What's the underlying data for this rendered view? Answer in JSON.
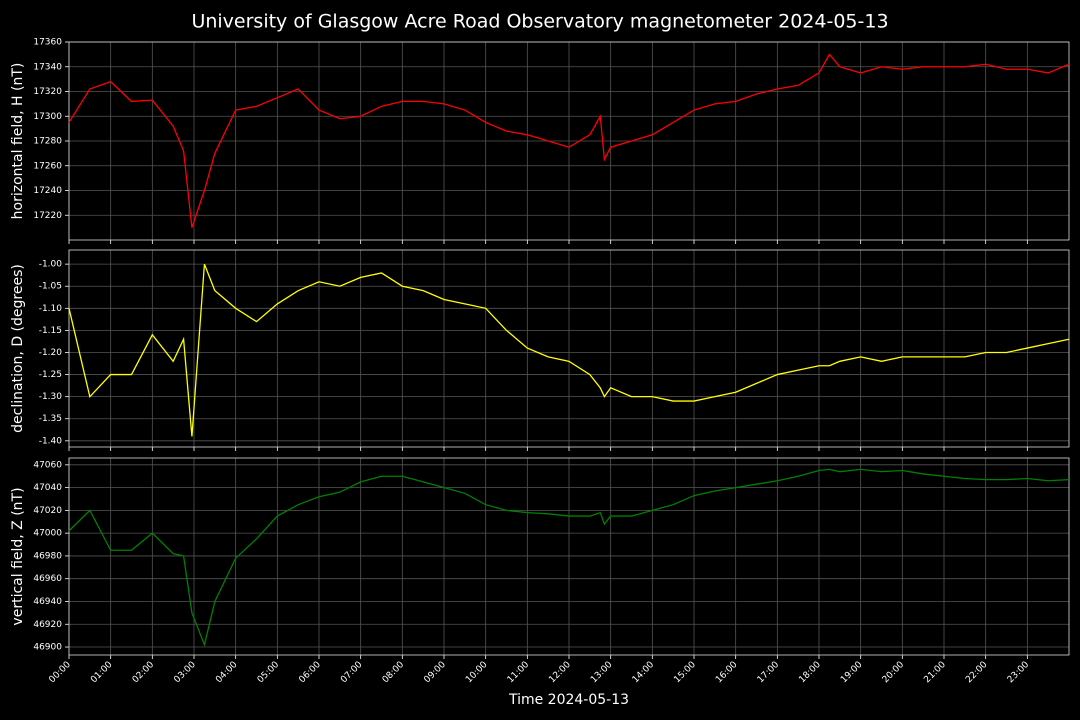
{
  "chart_data": [
    {
      "type": "line",
      "title": "University of Glasgow Acre Road Observatory magnetometer 2024-05-13",
      "ylabel": "horizontal field, H (nT)",
      "color": "#ff0000",
      "grid": true,
      "x": [
        0,
        0.5,
        1,
        1.5,
        2,
        2.5,
        2.75,
        2.95,
        3.25,
        3.5,
        4,
        4.5,
        5,
        5.5,
        6,
        6.5,
        7,
        7.5,
        8,
        8.5,
        9,
        9.5,
        10,
        10.5,
        11,
        11.5,
        12,
        12.5,
        12.75,
        12.85,
        13,
        13.5,
        14,
        14.5,
        15,
        15.5,
        16,
        16.5,
        17,
        17.5,
        18,
        18.25,
        18.5,
        19,
        19.5,
        20,
        20.5,
        21,
        21.5,
        22,
        22.5,
        23,
        23.5,
        24
      ],
      "values": [
        17295,
        17322,
        17328,
        17312,
        17313,
        17292,
        17272,
        17210,
        17240,
        17270,
        17305,
        17308,
        17315,
        17322,
        17305,
        17298,
        17300,
        17308,
        17312,
        17312,
        17310,
        17305,
        17295,
        17288,
        17285,
        17280,
        17275,
        17285,
        17300,
        17265,
        17275,
        17280,
        17285,
        17295,
        17305,
        17310,
        17312,
        17318,
        17322,
        17325,
        17335,
        17350,
        17340,
        17335,
        17340,
        17338,
        17340,
        17340,
        17340,
        17342,
        17338,
        17338,
        17335,
        17342
      ],
      "xlim": [
        0,
        24
      ],
      "ylim": [
        17200,
        17360
      ],
      "yticks": [
        17220,
        17240,
        17260,
        17280,
        17300,
        17320,
        17340,
        17360
      ]
    },
    {
      "type": "line",
      "ylabel": "declination, D (degrees)",
      "color": "#ffff00",
      "grid": true,
      "x": [
        0,
        0.5,
        1,
        1.5,
        2,
        2.5,
        2.75,
        2.95,
        3.25,
        3.5,
        4,
        4.5,
        5,
        5.5,
        6,
        6.5,
        7,
        7.5,
        8,
        8.5,
        9,
        9.5,
        10,
        10.5,
        11,
        11.5,
        12,
        12.5,
        12.75,
        12.85,
        13,
        13.5,
        14,
        14.5,
        15,
        15.5,
        16,
        16.5,
        17,
        17.5,
        18,
        18.25,
        18.5,
        19,
        19.5,
        20,
        20.5,
        21,
        21.5,
        22,
        22.5,
        23,
        23.5,
        24
      ],
      "values": [
        -1.1,
        -1.3,
        -1.25,
        -1.25,
        -1.16,
        -1.22,
        -1.17,
        -1.39,
        -1.0,
        -1.06,
        -1.1,
        -1.13,
        -1.09,
        -1.06,
        -1.04,
        -1.05,
        -1.03,
        -1.02,
        -1.05,
        -1.06,
        -1.08,
        -1.09,
        -1.1,
        -1.15,
        -1.19,
        -1.21,
        -1.22,
        -1.25,
        -1.28,
        -1.3,
        -1.28,
        -1.3,
        -1.3,
        -1.31,
        -1.31,
        -1.3,
        -1.29,
        -1.27,
        -1.25,
        -1.24,
        -1.23,
        -1.23,
        -1.22,
        -1.21,
        -1.22,
        -1.21,
        -1.21,
        -1.21,
        -1.21,
        -1.2,
        -1.2,
        -1.19,
        -1.18,
        -1.17
      ],
      "xlim": [
        0,
        24
      ],
      "ylim": [
        -1.414,
        -0.968
      ],
      "yticks": [
        {
          "value": -1.4,
          "label": "-1.40"
        },
        -1.35,
        {
          "value": -1.3,
          "label": "-1.30"
        },
        -1.25,
        {
          "value": -1.2,
          "label": "-1.20"
        },
        -1.15,
        {
          "value": -1.1,
          "label": "-1.10"
        },
        -1.05,
        {
          "value": -1,
          "label": "-1.00"
        }
      ]
    },
    {
      "type": "line",
      "ylabel": "vertical field, Z (nT)",
      "xlabel": "Time 2024-05-13",
      "color": "#008000",
      "grid": true,
      "x": [
        0,
        0.5,
        1,
        1.5,
        2,
        2.5,
        2.75,
        2.95,
        3.25,
        3.5,
        4,
        4.5,
        5,
        5.5,
        6,
        6.5,
        7,
        7.5,
        8,
        8.5,
        9,
        9.5,
        10,
        10.5,
        11,
        11.5,
        12,
        12.5,
        12.75,
        12.85,
        13,
        13.5,
        14,
        14.5,
        15,
        15.5,
        16,
        16.5,
        17,
        17.5,
        18,
        18.25,
        18.5,
        19,
        19.5,
        20,
        20.5,
        21,
        21.5,
        22,
        22.5,
        23,
        23.5,
        24
      ],
      "values": [
        47002,
        47020,
        46985,
        46985,
        47000,
        46982,
        46980,
        46930,
        46902,
        46940,
        46978,
        46995,
        47015,
        47025,
        47032,
        47036,
        47045,
        47050,
        47050,
        47045,
        47040,
        47035,
        47025,
        47020,
        47018,
        47017,
        47015,
        47015,
        47018,
        47008,
        47015,
        47015,
        47020,
        47025,
        47033,
        47037,
        47040,
        47043,
        47046,
        47050,
        47055,
        47056,
        47054,
        47056,
        47054,
        47055,
        47052,
        47050,
        47048,
        47047,
        47047,
        47048,
        47046,
        47047
      ],
      "xlim": [
        0,
        24
      ],
      "ylim": [
        46893,
        47066
      ],
      "yticks": [
        46900,
        46920,
        46940,
        46960,
        46980,
        47000,
        47020,
        47040,
        47060
      ],
      "xticks": [
        {
          "value": 0,
          "label": "00:00"
        },
        {
          "value": 1,
          "label": "01:00"
        },
        {
          "value": 2,
          "label": "02:00"
        },
        {
          "value": 3,
          "label": "03:00"
        },
        {
          "value": 4,
          "label": "04:00"
        },
        {
          "value": 5,
          "label": "05:00"
        },
        {
          "value": 6,
          "label": "06:00"
        },
        {
          "value": 7,
          "label": "07:00"
        },
        {
          "value": 8,
          "label": "08:00"
        },
        {
          "value": 9,
          "label": "09:00"
        },
        {
          "value": 10,
          "label": "10:00"
        },
        {
          "value": 11,
          "label": "11:00"
        },
        {
          "value": 12,
          "label": "12:00"
        },
        {
          "value": 13,
          "label": "13:00"
        },
        {
          "value": 14,
          "label": "14:00"
        },
        {
          "value": 15,
          "label": "15:00"
        },
        {
          "value": 16,
          "label": "16:00"
        },
        {
          "value": 17,
          "label": "17:00"
        },
        {
          "value": 18,
          "label": "18:00"
        },
        {
          "value": 19,
          "label": "19:00"
        },
        {
          "value": 20,
          "label": "20:00"
        },
        {
          "value": 21,
          "label": "21:00"
        },
        {
          "value": 22,
          "label": "22:00"
        },
        {
          "value": 23,
          "label": "23:00"
        }
      ]
    }
  ]
}
